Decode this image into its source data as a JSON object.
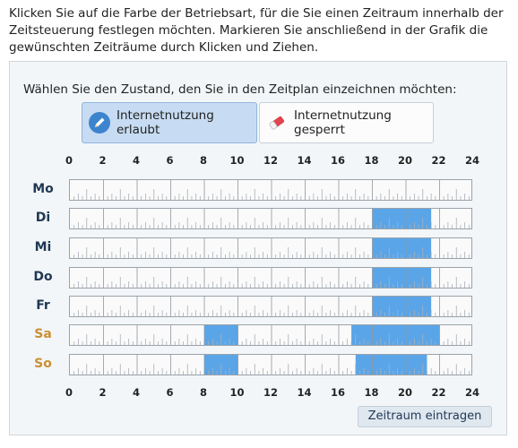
{
  "intro_text": "Klicken Sie auf die Farbe der Betriebsart, für die Sie einen Zeitraum innerhalb der Zeitsteuerung festlegen möchten. Markieren Sie anschließend in der Grafik die gewünschten Zeiträume durch Klicken und Ziehen.",
  "prompt": "Wählen Sie den Zustand, den Sie in den Zeitplan einzeichnen möchten:",
  "modes": [
    {
      "label": "Internetnutzung erlaubt",
      "icon": "pencil-icon",
      "selected": true
    },
    {
      "label": "Internetnutzung gesperrt",
      "icon": "eraser-icon",
      "selected": false
    }
  ],
  "axis_labels": [
    "0",
    "2",
    "4",
    "6",
    "8",
    "10",
    "12",
    "14",
    "16",
    "18",
    "20",
    "22",
    "24"
  ],
  "colors": {
    "allowed": "#5aa5e8",
    "weekday_label": "#1f3854",
    "weekend_label": "#c99034"
  },
  "days": [
    {
      "label": "Mo",
      "weekend": false,
      "ranges": []
    },
    {
      "label": "Di",
      "weekend": false,
      "ranges": [
        [
          18.0,
          21.5
        ]
      ]
    },
    {
      "label": "Mi",
      "weekend": false,
      "ranges": [
        [
          18.0,
          21.5
        ]
      ]
    },
    {
      "label": "Do",
      "weekend": false,
      "ranges": [
        [
          18.0,
          21.5
        ]
      ]
    },
    {
      "label": "Fr",
      "weekend": false,
      "ranges": [
        [
          18.0,
          21.5
        ]
      ]
    },
    {
      "label": "Sa",
      "weekend": true,
      "ranges": [
        [
          8.0,
          10.0
        ],
        [
          16.75,
          22.0
        ]
      ]
    },
    {
      "label": "So",
      "weekend": true,
      "ranges": [
        [
          8.0,
          10.0
        ],
        [
          17.0,
          21.25
        ]
      ]
    }
  ],
  "submit_label": "Zeitraum eintragen"
}
